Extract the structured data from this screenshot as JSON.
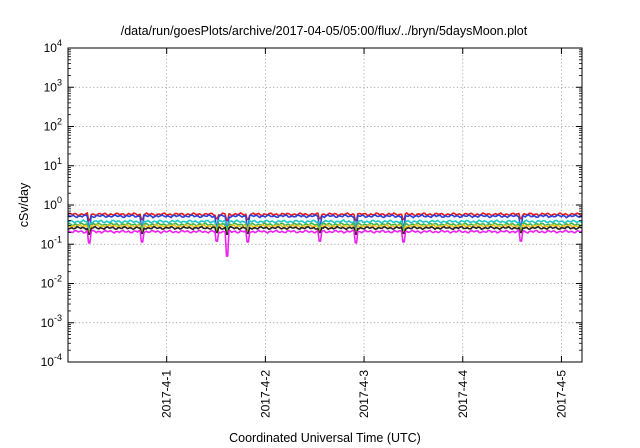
{
  "chart_data": {
    "type": "line",
    "title": "/data/run/goesPlots/archive/2017-04-05/05:00/flux/../bryn/5daysMoon.plot",
    "xlabel": "Coordinated Universal Time (UTC)",
    "ylabel": "cSv/day",
    "yscale": "log",
    "ylim": [
      0.0001,
      10000
    ],
    "y_ticks": [
      {
        "value": 0.0001,
        "base": "10",
        "exp": "-4"
      },
      {
        "value": 0.001,
        "base": "10",
        "exp": "-3"
      },
      {
        "value": 0.01,
        "base": "10",
        "exp": "-2"
      },
      {
        "value": 0.1,
        "base": "10",
        "exp": "-1"
      },
      {
        "value": 1,
        "base": "10",
        "exp": "0"
      },
      {
        "value": 10,
        "base": "10",
        "exp": "1"
      },
      {
        "value": 100,
        "base": "10",
        "exp": "2"
      },
      {
        "value": 1000,
        "base": "10",
        "exp": "3"
      },
      {
        "value": 10000,
        "base": "10",
        "exp": "4"
      }
    ],
    "xlim": [
      "2017-03-31T00:00",
      "2017-04-05T05:00"
    ],
    "x_ticks": [
      {
        "value": "2017-04-01T00:00",
        "label": "2017-4-1"
      },
      {
        "value": "2017-04-02T00:00",
        "label": "2017-4-2"
      },
      {
        "value": "2017-04-03T00:00",
        "label": "2017-4-3"
      },
      {
        "value": "2017-04-04T00:00",
        "label": "2017-4-4"
      },
      {
        "value": "2017-04-05T00:00",
        "label": "2017-4-5"
      }
    ],
    "grid": true,
    "series": [
      {
        "color": "#e41a1c",
        "base": 0.58,
        "dips": [
          0.45
        ]
      },
      {
        "color": "#2c3fd6",
        "base": 0.52,
        "dips": [
          0.3
        ]
      },
      {
        "color": "#1fc7c7",
        "base": 0.38,
        "dips": [
          0.28
        ]
      },
      {
        "color": "#3cb44b",
        "base": 0.32,
        "dips": [
          0.24
        ]
      },
      {
        "color": "#f0c020",
        "base": 0.29,
        "dips": [
          0.22
        ]
      },
      {
        "color": "#222222",
        "base": 0.26,
        "dips": [
          0.2
        ]
      },
      {
        "color": "#ee22ee",
        "base": 0.21,
        "dips": [
          0.12,
          0.05
        ]
      }
    ],
    "dip_times": [
      "2017-03-31T05:00",
      "2017-03-31T18:00",
      "2017-04-01T12:00",
      "2017-04-01T14:30",
      "2017-04-01T19:30",
      "2017-04-02T13:00",
      "2017-04-02T22:00",
      "2017-04-03T09:30",
      "2017-04-04T14:00"
    ]
  }
}
